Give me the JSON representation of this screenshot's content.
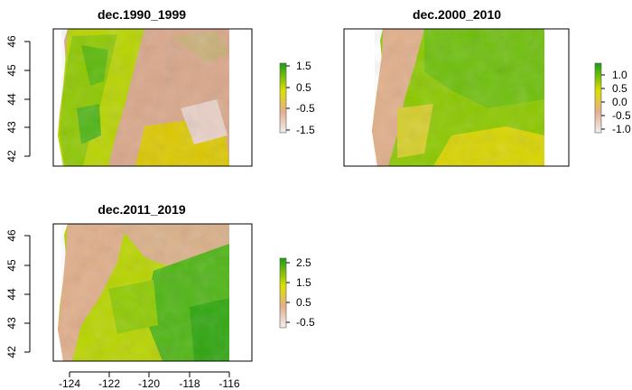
{
  "panels": [
    {
      "title": "dec.1990_1999",
      "y_ticks": [
        "42",
        "43",
        "44",
        "45",
        "46"
      ],
      "legend_ticks": [
        "1.5",
        "0.5",
        "-0.5",
        "-1.5"
      ],
      "range": [
        -1.8,
        1.8
      ]
    },
    {
      "title": "dec.2000_2010",
      "y_ticks": [],
      "legend_ticks": [
        "1.0",
        "0.5",
        "0.0",
        "-0.5",
        "-1.0"
      ],
      "range": [
        -1.2,
        1.2
      ]
    },
    {
      "title": "dec.2011_2019",
      "y_ticks": [
        "42",
        "43",
        "44",
        "45",
        "46"
      ],
      "x_ticks": [
        "-124",
        "-122",
        "-120",
        "-118",
        "-116"
      ],
      "legend_ticks": [
        "2.5",
        "1.5",
        "0.5",
        "-0.5"
      ],
      "range": [
        -0.8,
        2.8
      ]
    }
  ],
  "colors": {
    "low": "#f2f2f2",
    "mid_low": "#e0b08a",
    "mid": "#dede00",
    "high": "#1a9e12",
    "frame": "#000000"
  }
}
